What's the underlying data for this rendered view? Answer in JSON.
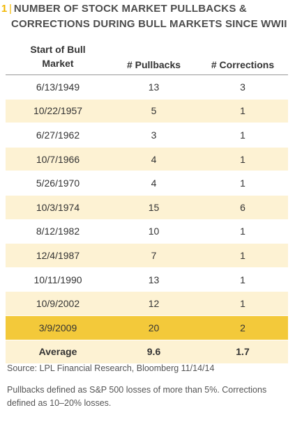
{
  "title": {
    "figure_number": "1",
    "line1": "NUMBER OF STOCK MARKET PULLBACKS &",
    "line2": "CORRECTIONS DURING BULL MARKETS SINCE WWII"
  },
  "colors": {
    "accent": "#f2b700",
    "cream_row": "#fdf2d3",
    "highlight_row": "#f3c93a"
  },
  "chart_data": {
    "type": "table",
    "columns": [
      "Start of Bull Market",
      "# Pullbacks",
      "# Corrections"
    ],
    "rows": [
      [
        "6/13/1949",
        "13",
        "3"
      ],
      [
        "10/22/1957",
        "5",
        "1"
      ],
      [
        "6/27/1962",
        "3",
        "1"
      ],
      [
        "10/7/1966",
        "4",
        "1"
      ],
      [
        "5/26/1970",
        "4",
        "1"
      ],
      [
        "10/3/1974",
        "15",
        "6"
      ],
      [
        "8/12/1982",
        "10",
        "1"
      ],
      [
        "12/4/1987",
        "7",
        "1"
      ],
      [
        "10/11/1990",
        "13",
        "1"
      ],
      [
        "10/9/2002",
        "12",
        "1"
      ],
      [
        "3/9/2009",
        "20",
        "2"
      ]
    ],
    "average": [
      "Average",
      "9.6",
      "1.7"
    ],
    "highlighted_row": "3/9/2009"
  },
  "source": "Source: LPL Financial Research, Bloomberg   11/14/14",
  "note": "Pullbacks defined as S&P 500 losses of more than 5%. Corrections defined as 10–20% losses."
}
